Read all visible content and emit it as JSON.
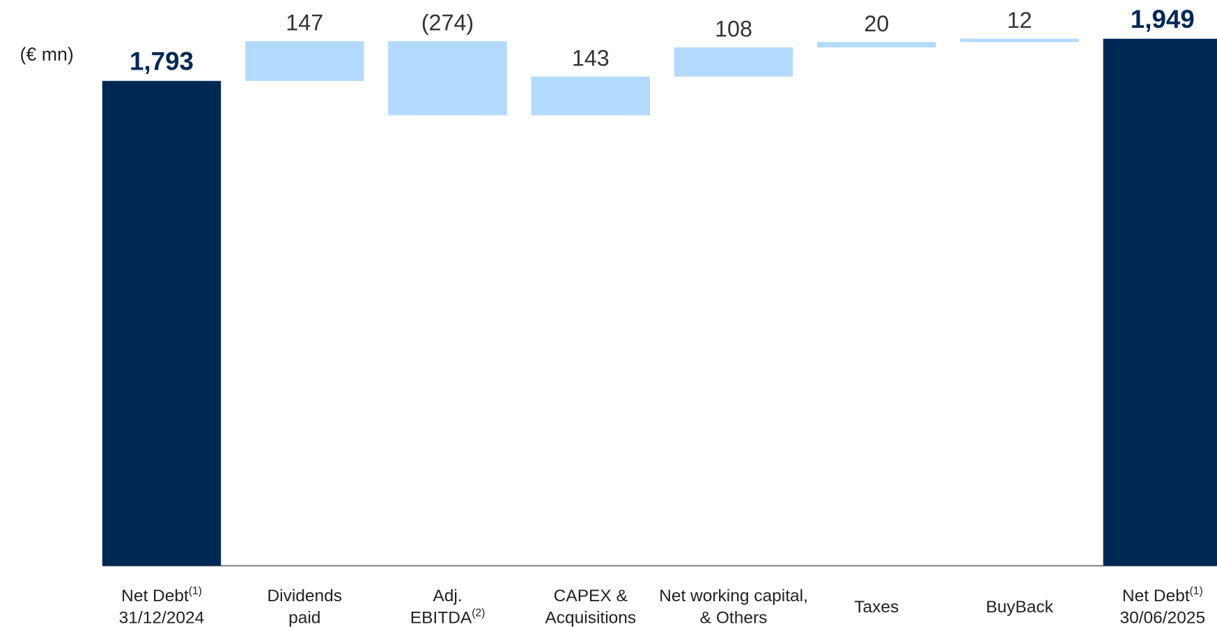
{
  "chart_data": {
    "type": "waterfall",
    "unit_label": "(€ mn)",
    "categories": [
      [
        [
          "Net Debt",
          "(1)"
        ],
        [
          "31/12/2024"
        ]
      ],
      [
        [
          "Dividends"
        ],
        [
          "paid"
        ]
      ],
      [
        [
          "Adj."
        ],
        [
          "EBITDA",
          "(2)"
        ]
      ],
      [
        [
          "CAPEX &"
        ],
        [
          "Acquisitions"
        ]
      ],
      [
        [
          "Net working capital,"
        ],
        [
          "& Others"
        ]
      ],
      [
        [
          "Taxes"
        ]
      ],
      [
        [
          "BuyBack"
        ]
      ],
      [
        [
          "Net Debt",
          "(1)"
        ],
        [
          "30/06/2025"
        ]
      ]
    ],
    "measures": [
      "total",
      "relative",
      "relative",
      "relative",
      "relative",
      "relative",
      "relative",
      "total"
    ],
    "values": [
      1793,
      147,
      -274,
      143,
      108,
      20,
      12,
      1949
    ],
    "value_labels": [
      "1,793",
      "147",
      "(274)",
      "143",
      "108",
      "20",
      "12",
      "1,949"
    ],
    "total_color": "#002855",
    "delta_color": "#b3dafe"
  }
}
